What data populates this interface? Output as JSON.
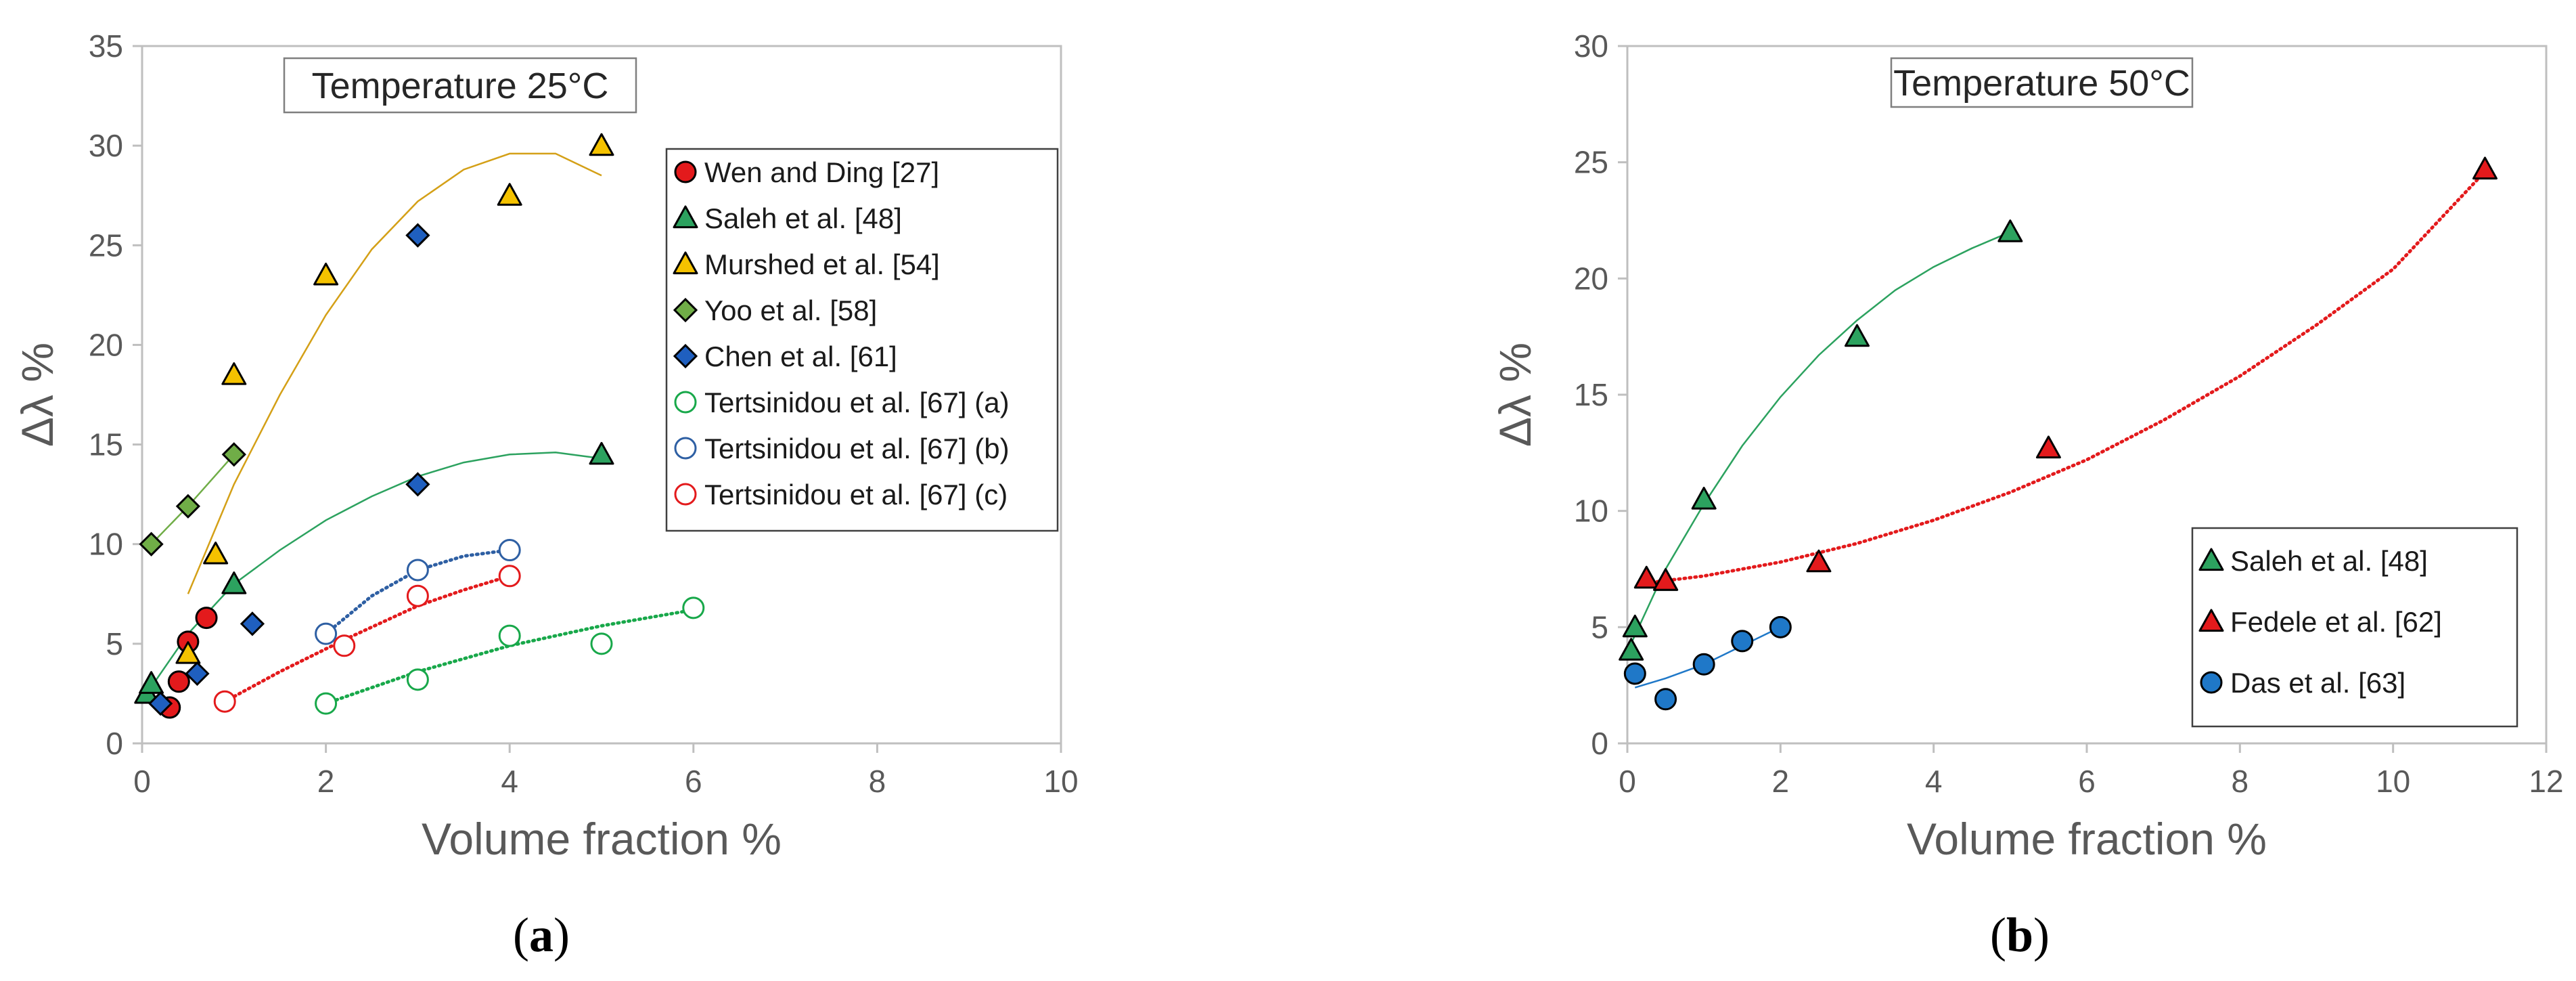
{
  "chart_data": [
    {
      "type": "scatter",
      "panel_label": {
        "open": "(",
        "letter": "a",
        "close": ")"
      },
      "title": "Temperature 25°C",
      "xlabel": "Volume fraction %",
      "ylabel": "Δλ %",
      "xlim": [
        0,
        10
      ],
      "ylim": [
        0,
        35
      ],
      "xticks": [
        "0",
        "2",
        "4",
        "6",
        "8",
        "10"
      ],
      "yticks": [
        "0",
        "5",
        "10",
        "15",
        "20",
        "25",
        "30",
        "35"
      ],
      "grid": false,
      "legend_position": "right",
      "series": [
        {
          "name": "Wen and Ding [27]",
          "marker": "circle",
          "fill": "#e31a1c",
          "stroke": "#000000",
          "points": [
            [
              0.3,
              1.8
            ],
            [
              0.4,
              3.1
            ],
            [
              0.5,
              5.1
            ],
            [
              0.7,
              6.3
            ]
          ]
        },
        {
          "name": "Saleh et al. [48]",
          "marker": "triangle",
          "fill": "#2ca25f",
          "stroke": "#000000",
          "points": [
            [
              0.05,
              2.5
            ],
            [
              0.1,
              3.0
            ],
            [
              1,
              8
            ],
            [
              5,
              14.5
            ]
          ],
          "trend": {
            "style": "solid",
            "color": "#2ca25f",
            "x": [
              0.05,
              0.5,
              1,
              1.5,
              2,
              2.5,
              3,
              3.5,
              4,
              4.5,
              5
            ],
            "y": [
              2.5,
              5.5,
              8.0,
              9.7,
              11.2,
              12.4,
              13.4,
              14.1,
              14.5,
              14.6,
              14.3
            ]
          }
        },
        {
          "name": "Murshed et al. [54]",
          "marker": "triangle",
          "fill": "#f5c200",
          "stroke": "#000000",
          "points": [
            [
              0.5,
              4.5
            ],
            [
              0.8,
              9.5
            ],
            [
              1,
              18.5
            ],
            [
              2,
              23.5
            ],
            [
              4,
              27.5
            ],
            [
              5,
              30
            ]
          ],
          "trend": {
            "style": "solid",
            "color": "#d4a017",
            "x": [
              0.5,
              1,
              1.5,
              2,
              2.5,
              3,
              3.5,
              4,
              4.5,
              5
            ],
            "y": [
              7.5,
              13.0,
              17.5,
              21.5,
              24.8,
              27.2,
              28.8,
              29.6,
              29.6,
              28.5
            ]
          }
        },
        {
          "name": "Yoo et al. [58]",
          "marker": "diamond",
          "fill": "#70ad47",
          "stroke": "#000000",
          "points": [
            [
              0.1,
              10
            ],
            [
              0.5,
              11.9
            ],
            [
              1,
              14.5
            ]
          ],
          "trend": {
            "style": "solid",
            "color": "#70ad47",
            "x": [
              0.1,
              0.5,
              1
            ],
            "y": [
              10,
              11.9,
              14.5
            ]
          }
        },
        {
          "name": "Chen et al. [61]",
          "marker": "diamond",
          "fill": "#1f5fbf",
          "stroke": "#000000",
          "points": [
            [
              0.2,
              2.0
            ],
            [
              0.6,
              3.5
            ],
            [
              1.2,
              6.0
            ],
            [
              3,
              13
            ],
            [
              3,
              25.5
            ]
          ]
        },
        {
          "name": "Tertsinidou et al. [67] (a)",
          "marker": "circle-open",
          "fill": "none",
          "stroke": "#18a84a",
          "points": [
            [
              2,
              2.0
            ],
            [
              3,
              3.2
            ],
            [
              4,
              5.4
            ],
            [
              5,
              5.0
            ],
            [
              6,
              6.8
            ]
          ],
          "trend": {
            "style": "dotted",
            "color": "#18a84a",
            "x": [
              2,
              3,
              4,
              5,
              6
            ],
            "y": [
              2.0,
              3.6,
              4.9,
              5.9,
              6.7
            ]
          }
        },
        {
          "name": "Tertsinidou et al. [67] (b)",
          "marker": "circle-open",
          "fill": "none",
          "stroke": "#2e5fa3",
          "points": [
            [
              2,
              5.5
            ],
            [
              3,
              8.7
            ],
            [
              4,
              9.7
            ]
          ],
          "trend": {
            "style": "dotted",
            "color": "#2e5fa3",
            "x": [
              2,
              2.5,
              3,
              3.5,
              4
            ],
            "y": [
              5.5,
              7.4,
              8.7,
              9.4,
              9.7
            ]
          }
        },
        {
          "name": "Tertsinidou et al. [67] (c)",
          "marker": "circle-open",
          "fill": "none",
          "stroke": "#e31a1c",
          "points": [
            [
              0.9,
              2.1
            ],
            [
              2.2,
              4.9
            ],
            [
              3,
              7.4
            ],
            [
              4,
              8.4
            ]
          ],
          "trend": {
            "style": "dotted",
            "color": "#e31a1c",
            "x": [
              0.9,
              1.5,
              2.2,
              3,
              3.5,
              4
            ],
            "y": [
              2.1,
              3.6,
              5.2,
              6.9,
              7.7,
              8.4
            ]
          }
        }
      ]
    },
    {
      "type": "scatter",
      "panel_label": {
        "open": "(",
        "letter": "b",
        "close": ")"
      },
      "title": "Temperature 50°C",
      "xlabel": "Volume fraction %",
      "ylabel": "Δλ %",
      "xlim": [
        0,
        12
      ],
      "ylim": [
        0,
        30
      ],
      "xticks": [
        "0",
        "2",
        "4",
        "6",
        "8",
        "10",
        "12"
      ],
      "yticks": [
        "0",
        "5",
        "10",
        "15",
        "20",
        "25",
        "30"
      ],
      "grid": false,
      "legend_position": "bottom-right",
      "series": [
        {
          "name": "Saleh et al. [48]",
          "marker": "triangle",
          "fill": "#2ca25f",
          "stroke": "#000000",
          "points": [
            [
              0.05,
              4
            ],
            [
              0.1,
              5
            ],
            [
              0.5,
              7
            ],
            [
              1,
              10.5
            ],
            [
              3,
              17.5
            ],
            [
              5,
              22
            ]
          ],
          "trend": {
            "style": "solid",
            "color": "#2ca25f",
            "x": [
              0.05,
              0.5,
              1,
              1.5,
              2,
              2.5,
              3,
              3.5,
              4,
              4.5,
              5
            ],
            "y": [
              4.3,
              7.5,
              10.3,
              12.8,
              14.9,
              16.7,
              18.2,
              19.5,
              20.5,
              21.3,
              22.0
            ]
          }
        },
        {
          "name": "Fedele et al. [62]",
          "marker": "triangle",
          "fill": "#e31a1c",
          "stroke": "#000000",
          "points": [
            [
              0.25,
              7.1
            ],
            [
              0.5,
              7.0
            ],
            [
              2.5,
              7.8
            ],
            [
              5.5,
              12.7
            ],
            [
              11.2,
              24.7
            ]
          ],
          "trend": {
            "style": "dotted",
            "color": "#e31a1c",
            "x": [
              0.25,
              1,
              2,
              3,
              4,
              5,
              6,
              7,
              8,
              9,
              10,
              11.2
            ],
            "y": [
              6.9,
              7.2,
              7.8,
              8.6,
              9.6,
              10.8,
              12.2,
              13.9,
              15.8,
              18.0,
              20.4,
              24.6
            ]
          }
        },
        {
          "name": "Das et al. [63]",
          "marker": "circle",
          "fill": "#1f78c8",
          "stroke": "#000000",
          "points": [
            [
              0.1,
              3.0
            ],
            [
              0.5,
              1.9
            ],
            [
              1,
              3.4
            ],
            [
              1.5,
              4.4
            ],
            [
              2,
              5.0
            ]
          ],
          "trend": {
            "style": "solid",
            "color": "#1f78c8",
            "x": [
              0.1,
              0.5,
              1,
              1.5,
              2
            ],
            "y": [
              2.4,
              2.8,
              3.4,
              4.2,
              5.0
            ]
          }
        }
      ]
    }
  ]
}
